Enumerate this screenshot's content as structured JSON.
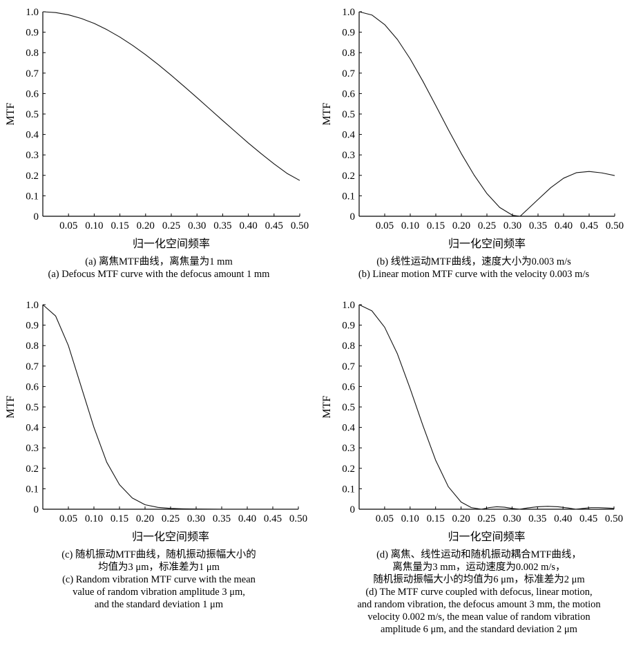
{
  "chart_data": [
    {
      "type": "line",
      "xlabel": "归一化空间频率",
      "ylabel": "MTF",
      "xlim": [
        0,
        0.5
      ],
      "ylim": [
        0,
        1.0
      ],
      "xticks": [
        "0.05",
        "0.10",
        "0.15",
        "0.20",
        "0.25",
        "0.30",
        "0.35",
        "0.40",
        "0.45",
        "0.50"
      ],
      "yticks": [
        "0",
        "0.1",
        "0.2",
        "0.3",
        "0.4",
        "0.5",
        "0.6",
        "0.7",
        "0.8",
        "0.9",
        "1.0"
      ],
      "series": [
        {
          "x": [
            0,
            0.025,
            0.05,
            0.075,
            0.1,
            0.125,
            0.15,
            0.175,
            0.2,
            0.225,
            0.25,
            0.275,
            0.3,
            0.325,
            0.35,
            0.375,
            0.4,
            0.425,
            0.45,
            0.475,
            0.5
          ],
          "y": [
            1.0,
            0.996,
            0.985,
            0.967,
            0.943,
            0.912,
            0.876,
            0.835,
            0.79,
            0.741,
            0.689,
            0.635,
            0.58,
            0.524,
            0.468,
            0.413,
            0.358,
            0.306,
            0.256,
            0.21,
            0.175
          ]
        }
      ],
      "caption": [
        "(a) 离焦MTF曲线，离焦量为1 mm",
        "(a) Defocus MTF curve with the defocus amount 1 mm"
      ]
    },
    {
      "type": "line",
      "xlabel": "归一化空间频率",
      "ylabel": "MTF",
      "xlim": [
        0,
        0.5
      ],
      "ylim": [
        0,
        1.0
      ],
      "xticks": [
        "0.05",
        "0.10",
        "0.15",
        "0.20",
        "0.25",
        "0.30",
        "0.35",
        "0.40",
        "0.45",
        "0.50"
      ],
      "yticks": [
        "0",
        "0.1",
        "0.2",
        "0.3",
        "0.4",
        "0.5",
        "0.6",
        "0.7",
        "0.8",
        "0.9",
        "1.0"
      ],
      "series": [
        {
          "x": [
            0,
            0.025,
            0.05,
            0.075,
            0.1,
            0.125,
            0.15,
            0.175,
            0.2,
            0.225,
            0.25,
            0.275,
            0.3,
            0.315,
            0.33,
            0.35,
            0.375,
            0.4,
            0.425,
            0.45,
            0.475,
            0.5
          ],
          "y": [
            1.0,
            0.984,
            0.937,
            0.864,
            0.769,
            0.659,
            0.541,
            0.421,
            0.306,
            0.201,
            0.111,
            0.043,
            0.005,
            0.0,
            0.035,
            0.082,
            0.14,
            0.186,
            0.213,
            0.219,
            0.212,
            0.199
          ]
        }
      ],
      "caption": [
        "(b) 线性运动MTF曲线，速度大小为0.003 m/s",
        "(b) Linear motion MTF curve with the velocity 0.003 m/s"
      ]
    },
    {
      "type": "line",
      "xlabel": "归一化空间频率",
      "ylabel": "MTF",
      "xlim": [
        0,
        0.5
      ],
      "ylim": [
        0,
        1.0
      ],
      "xticks": [
        "0.05",
        "0.10",
        "0.15",
        "0.20",
        "0.25",
        "0.30",
        "0.35",
        "0.40",
        "0.45",
        "0.50"
      ],
      "yticks": [
        "0",
        "0.1",
        "0.2",
        "0.3",
        "0.4",
        "0.5",
        "0.6",
        "0.7",
        "0.8",
        "0.9",
        "1.0"
      ],
      "series": [
        {
          "x": [
            0,
            0.025,
            0.05,
            0.075,
            0.1,
            0.125,
            0.15,
            0.175,
            0.2,
            0.225,
            0.25,
            0.275,
            0.3,
            0.35,
            0.4,
            0.45,
            0.5
          ],
          "y": [
            1.0,
            0.945,
            0.8,
            0.6,
            0.4,
            0.23,
            0.12,
            0.055,
            0.022,
            0.009,
            0.004,
            0.002,
            0.001,
            0.0,
            0.0,
            0.0,
            0.0
          ]
        }
      ],
      "caption": [
        "(c) 随机振动MTF曲线，随机振动振幅大小的",
        "均值为3 μm，标准差为1 μm",
        "(c) Random vibration MTF curve with the mean",
        "value of random vibration amplitude 3 μm,",
        "and the standard deviation 1 μm"
      ]
    },
    {
      "type": "line",
      "xlabel": "归一化空间频率",
      "ylabel": "MTF",
      "xlim": [
        0,
        0.5
      ],
      "ylim": [
        0,
        1.0
      ],
      "xticks": [
        "0.05",
        "0.10",
        "0.15",
        "0.20",
        "0.25",
        "0.30",
        "0.35",
        "0.40",
        "0.45",
        "0.50"
      ],
      "yticks": [
        "0",
        "0.1",
        "0.2",
        "0.3",
        "0.4",
        "0.5",
        "0.6",
        "0.7",
        "0.8",
        "0.9",
        "1.0"
      ],
      "series": [
        {
          "x": [
            0,
            0.025,
            0.05,
            0.075,
            0.1,
            0.125,
            0.15,
            0.175,
            0.2,
            0.22,
            0.24,
            0.255,
            0.27,
            0.285,
            0.3,
            0.315,
            0.33,
            0.35,
            0.37,
            0.39,
            0.41,
            0.425,
            0.44,
            0.455,
            0.47,
            0.485,
            0.5
          ],
          "y": [
            1.0,
            0.97,
            0.89,
            0.76,
            0.59,
            0.41,
            0.24,
            0.11,
            0.035,
            0.008,
            0.0,
            0.008,
            0.012,
            0.01,
            0.004,
            0.0,
            0.006,
            0.012,
            0.014,
            0.012,
            0.006,
            0.0,
            0.004,
            0.008,
            0.008,
            0.006,
            0.004
          ]
        }
      ],
      "caption": [
        "(d)  离焦、线性运动和随机振动耦合MTF曲线，",
        "离焦量为3 mm，运动速度为0.002 m/s，",
        "随机振动振幅大小的均值为6 μm，标准差为2 μm",
        "(d)  The MTF curve coupled with defocus, linear motion,",
        "and random vibration, the defocus amount 3 mm, the motion",
        "velocity 0.002 m/s, the mean value of random vibration",
        "amplitude 6 μm, and the standard deviation 2 μm"
      ]
    }
  ]
}
